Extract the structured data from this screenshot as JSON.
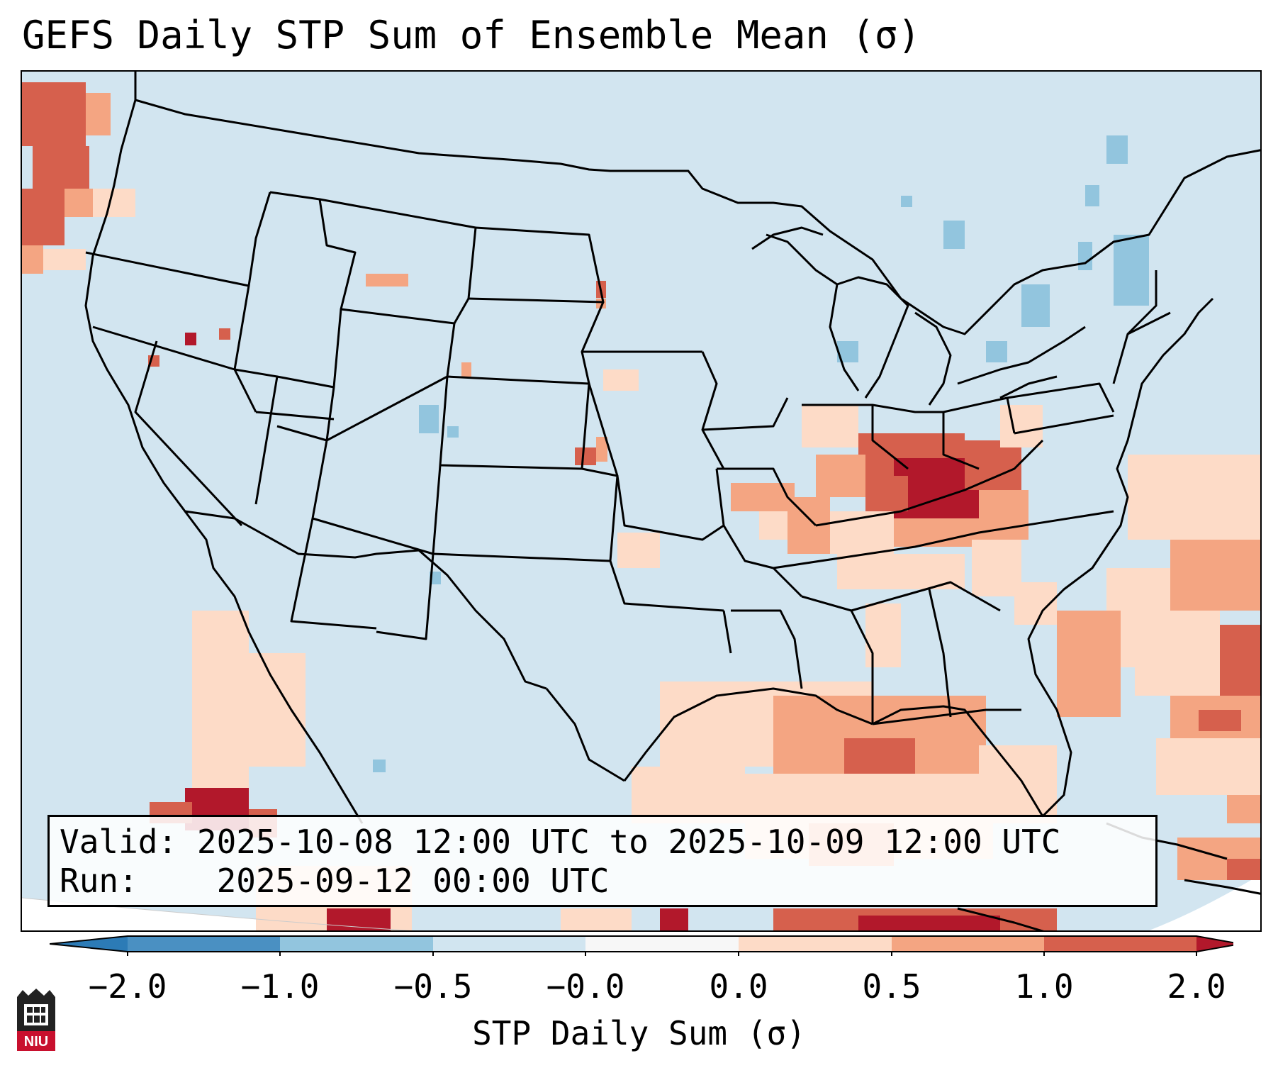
{
  "title": "GEFS Daily STP Sum of Ensemble Mean (σ)",
  "info": {
    "valid_label": "Valid:",
    "valid_value": "2025-10-08 12:00 UTC to 2025-10-09 12:00 UTC",
    "run_label": "Run:",
    "run_value": "2025-09-12 00:00 UTC"
  },
  "colorbar": {
    "label": "STP Daily Sum (σ)",
    "ticks": [
      "−2.0",
      "−1.0",
      "−0.5",
      "−0.0",
      "0.0",
      "0.5",
      "1.0",
      "2.0"
    ],
    "colors": [
      "#2c7bb6",
      "#4a90c2",
      "#92c5de",
      "#d1e5f0",
      "#f7f7f7",
      "#fddbc7",
      "#f4a582",
      "#d6604d",
      "#b2182b"
    ],
    "extend": "both"
  },
  "map": {
    "projection": "Lambert conformal",
    "region": "CONUS",
    "background_color": "#d2e5f0",
    "features": [
      "coastlines",
      "state borders",
      "country borders"
    ]
  },
  "logo": {
    "text": "NIU",
    "accent": "#c8102e"
  }
}
